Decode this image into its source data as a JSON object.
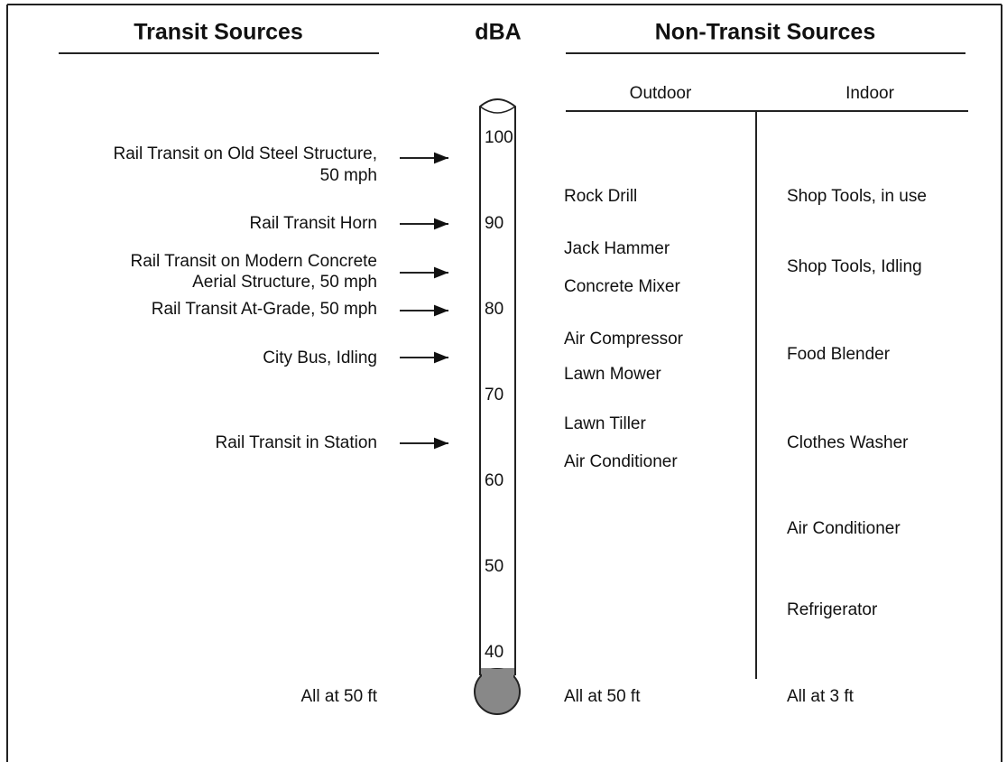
{
  "header": {
    "transit": "Transit Sources",
    "unit": "dBA",
    "non_transit": "Non-Transit Sources",
    "outdoor": "Outdoor",
    "indoor": "Indoor"
  },
  "scale": [
    100,
    90,
    80,
    70,
    60,
    50,
    40
  ],
  "transit": [
    [
      "Rail Transit on Old Steel Structure,",
      "50 mph"
    ],
    [
      "Rail Transit Horn"
    ],
    [
      "Rail Transit on Modern Concrete",
      "Aerial Structure, 50 mph"
    ],
    [
      "Rail Transit At-Grade, 50 mph"
    ],
    [
      "City Bus, Idling"
    ],
    [
      "Rail Transit in Station"
    ]
  ],
  "outdoor": [
    "Rock Drill",
    "Jack Hammer",
    "Concrete Mixer",
    "Air Compressor",
    "Lawn Mower",
    "Lawn Tiller",
    "Air Conditioner"
  ],
  "indoor": [
    "Shop Tools, in use",
    "Shop Tools, Idling",
    "Food Blender",
    "Clothes Washer",
    "Air Conditioner",
    "Refrigerator"
  ],
  "footer": {
    "transit": "All at 50 ft",
    "outdoor": "All at 50 ft",
    "indoor": "All at 3 ft"
  }
}
